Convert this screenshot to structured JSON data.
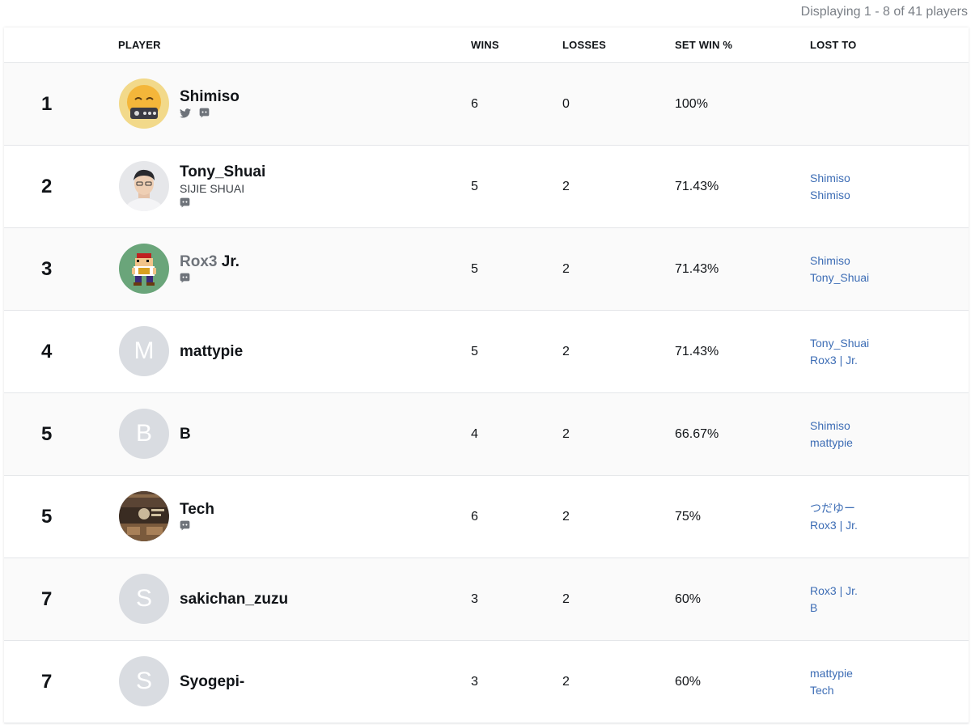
{
  "display_count": "Displaying 1 - 8 of 41 players",
  "columns": {
    "player": "PLAYER",
    "wins": "WINS",
    "losses": "LOSSES",
    "set_win": "SET WIN %",
    "lost_to": "LOST TO"
  },
  "colors": {
    "link": "#3d6db5",
    "row_alt": "#fafafa",
    "avatar_placeholder": "#d9dce1",
    "icon": "#6e737a"
  },
  "rows": [
    {
      "rank": "1",
      "name": "Shimiso",
      "prefix": "",
      "subname": "",
      "avatar_type": "image",
      "avatar_letter": "",
      "avatar_desc": "yellow-cartoon-arcade-stick-icon",
      "socials": [
        "twitter-icon",
        "discord-icon"
      ],
      "wins": "6",
      "losses": "0",
      "set_win": "100%",
      "lost_to": []
    },
    {
      "rank": "2",
      "name": "Tony_Shuai",
      "prefix": "",
      "subname": "SIJIE SHUAI",
      "avatar_type": "image",
      "avatar_letter": "",
      "avatar_desc": "person-photo",
      "socials": [
        "discord-icon"
      ],
      "wins": "5",
      "losses": "2",
      "set_win": "71.43%",
      "lost_to": [
        "Shimiso",
        "Shimiso"
      ]
    },
    {
      "rank": "3",
      "name": "Jr.",
      "prefix": "Rox3",
      "subname": "",
      "avatar_type": "image",
      "avatar_letter": "",
      "avatar_desc": "pixel-character-green-circle",
      "socials": [
        "discord-icon"
      ],
      "wins": "5",
      "losses": "2",
      "set_win": "71.43%",
      "lost_to": [
        "Shimiso",
        "Tony_Shuai"
      ]
    },
    {
      "rank": "4",
      "name": "mattypie",
      "prefix": "",
      "subname": "",
      "avatar_type": "letter",
      "avatar_letter": "M",
      "avatar_desc": "",
      "socials": [],
      "wins": "5",
      "losses": "2",
      "set_win": "71.43%",
      "lost_to": [
        "Tony_Shuai",
        "Rox3 | Jr."
      ]
    },
    {
      "rank": "5",
      "name": "B",
      "prefix": "",
      "subname": "",
      "avatar_type": "letter",
      "avatar_letter": "B",
      "avatar_desc": "",
      "socials": [],
      "wins": "4",
      "losses": "2",
      "set_win": "66.67%",
      "lost_to": [
        "Shimiso",
        "mattypie"
      ]
    },
    {
      "rank": "5",
      "name": "Tech",
      "prefix": "",
      "subname": "",
      "avatar_type": "image",
      "avatar_letter": "",
      "avatar_desc": "dark-game-screenshot",
      "socials": [
        "discord-icon"
      ],
      "wins": "6",
      "losses": "2",
      "set_win": "75%",
      "lost_to": [
        "つだゆー",
        "Rox3 | Jr."
      ]
    },
    {
      "rank": "7",
      "name": "sakichan_zuzu",
      "prefix": "",
      "subname": "",
      "avatar_type": "letter",
      "avatar_letter": "S",
      "avatar_desc": "",
      "socials": [],
      "wins": "3",
      "losses": "2",
      "set_win": "60%",
      "lost_to": [
        "Rox3 | Jr.",
        "B"
      ]
    },
    {
      "rank": "7",
      "name": "Syogepi-",
      "prefix": "",
      "subname": "",
      "avatar_type": "letter",
      "avatar_letter": "S",
      "avatar_desc": "",
      "socials": [],
      "wins": "3",
      "losses": "2",
      "set_win": "60%",
      "lost_to": [
        "mattypie",
        "Tech"
      ]
    }
  ]
}
